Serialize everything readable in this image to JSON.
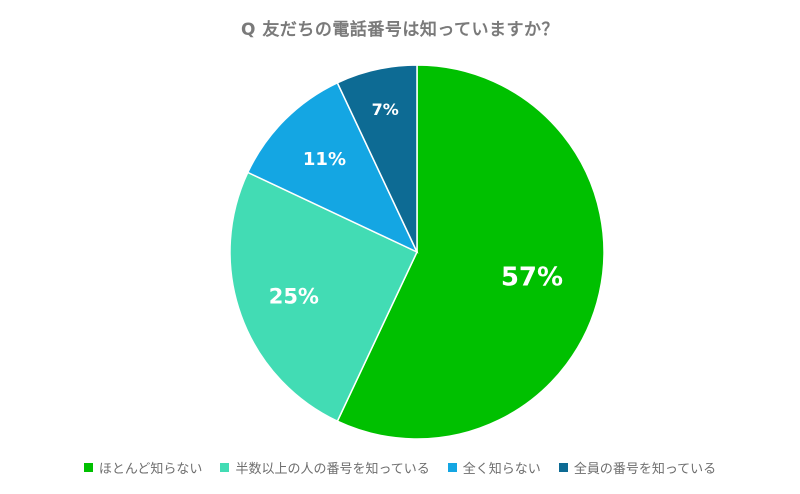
{
  "chart_data": {
    "type": "pie",
    "title": "Q 友だちの電話番号は知っていますか？",
    "categories": [
      "ほとんど知らない",
      "半数以上の人の番号を知っている",
      "全く知らない",
      "全員の番号を知っている"
    ],
    "values": [
      57,
      25,
      11,
      7
    ],
    "labels": [
      "57%",
      "25%",
      "11%",
      "7%"
    ],
    "colors": [
      "#00c000",
      "#42dcb4",
      "#14a6e3",
      "#0d6b94"
    ],
    "legend_position": "bottom"
  }
}
